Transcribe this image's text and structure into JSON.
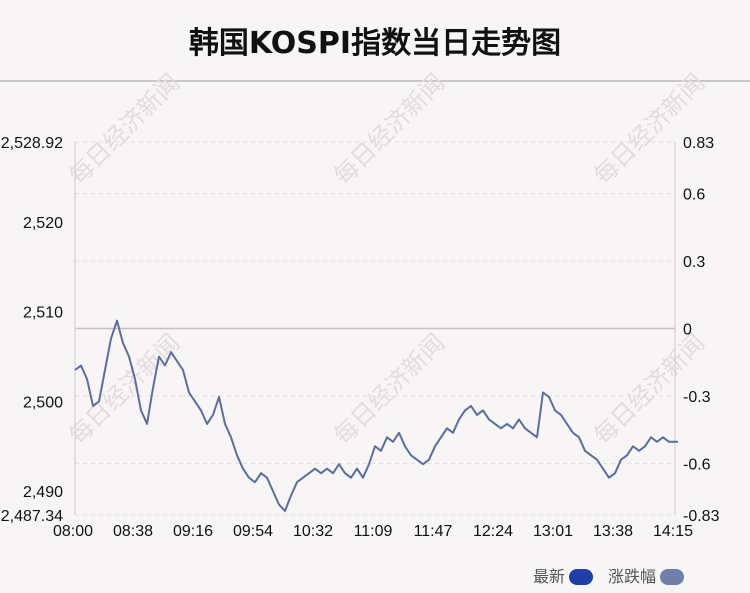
{
  "page": {
    "title": "韩国KOSPI指数当日走势图"
  },
  "legend": {
    "items": [
      {
        "label": "最新",
        "color": "#1f3fa8"
      },
      {
        "label": "涨跌幅",
        "color": "#6e7fa8"
      }
    ]
  },
  "watermark": "每日经济新闻",
  "chart_data": {
    "type": "line",
    "title": "韩国KOSPI指数当日走势图",
    "x_tick_labels": [
      "08:00",
      "08:38",
      "09:16",
      "09:54",
      "10:32",
      "11:09",
      "11:47",
      "12:24",
      "13:01",
      "13:38",
      "14:15"
    ],
    "y_left": {
      "ylim": [
        2487.34,
        2528.92
      ],
      "tick_labels": [
        "2,528.92",
        "2,520",
        "2,510",
        "2,500",
        "2,490",
        "2,487.34"
      ],
      "tick_values": [
        2528.92,
        2520,
        2510,
        2500,
        2490,
        2487.34
      ]
    },
    "y_right": {
      "ylim": [
        -0.83,
        0.83
      ],
      "tick_labels": [
        "0.83",
        "0.6",
        "0.3",
        "0",
        "-0.3",
        "-0.6",
        "-0.83"
      ],
      "tick_values": [
        0.83,
        0.6,
        0.3,
        0,
        -0.3,
        -0.6,
        -0.83
      ]
    },
    "reference_line": {
      "right_value": 0
    },
    "grid": true,
    "series": [
      {
        "color": "#5b6e9c",
        "x_index": [
          0,
          0.1,
          0.2,
          0.3,
          0.4,
          0.5,
          0.6,
          0.7,
          0.8,
          0.9,
          1.0,
          1.1,
          1.2,
          1.3,
          1.4,
          1.5,
          1.6,
          1.7,
          1.8,
          1.9,
          2.0,
          2.1,
          2.2,
          2.3,
          2.4,
          2.5,
          2.6,
          2.7,
          2.8,
          2.9,
          3.0,
          3.1,
          3.2,
          3.3,
          3.4,
          3.5,
          3.6,
          3.7,
          3.8,
          3.9,
          4.0,
          4.1,
          4.2,
          4.3,
          4.4,
          4.5,
          4.6,
          4.7,
          4.8,
          4.9,
          5.0,
          5.1,
          5.2,
          5.3,
          5.4,
          5.5,
          5.6,
          5.7,
          5.8,
          5.9,
          6.0,
          6.1,
          6.2,
          6.3,
          6.4,
          6.5,
          6.6,
          6.7,
          6.8,
          6.9,
          7.0,
          7.1,
          7.2,
          7.3,
          7.4,
          7.5,
          7.6,
          7.7,
          7.8,
          7.9,
          8.0,
          8.1,
          8.2,
          8.3,
          8.4,
          8.5,
          8.6,
          8.7,
          8.8,
          8.9,
          9.0,
          9.1,
          9.2,
          9.3,
          9.4,
          9.5,
          9.6,
          9.7,
          9.8,
          9.9,
          10.0,
          10.05
        ],
        "values": [
          2503.5,
          2504.0,
          2502.5,
          2499.5,
          2500.0,
          2503.5,
          2507.0,
          2509.0,
          2506.5,
          2505.0,
          2502.5,
          2499.0,
          2497.5,
          2501.5,
          2505.0,
          2504.0,
          2505.5,
          2504.5,
          2503.5,
          2501.0,
          2500.0,
          2499.0,
          2497.5,
          2498.5,
          2500.5,
          2497.5,
          2496.0,
          2494.0,
          2492.5,
          2491.5,
          2491.0,
          2492.0,
          2491.5,
          2490.0,
          2488.5,
          2487.8,
          2489.5,
          2491.0,
          2491.5,
          2492.0,
          2492.5,
          2492.0,
          2492.5,
          2492.0,
          2493.0,
          2492.0,
          2491.5,
          2492.5,
          2491.5,
          2493.0,
          2495.0,
          2494.5,
          2496.0,
          2495.5,
          2496.5,
          2495.0,
          2494.0,
          2493.5,
          2493.0,
          2493.5,
          2495.0,
          2496.0,
          2497.0,
          2496.5,
          2498.0,
          2499.0,
          2499.5,
          2498.5,
          2499.0,
          2498.0,
          2497.5,
          2497.0,
          2497.5,
          2497.0,
          2498.0,
          2497.0,
          2496.5,
          2496.0,
          2501.0,
          2500.5,
          2499.0,
          2498.5,
          2497.5,
          2496.5,
          2496.0,
          2494.5,
          2494.0,
          2493.5,
          2492.5,
          2491.5,
          2492.0,
          2493.5,
          2494.0,
          2495.0,
          2494.5,
          2495.0,
          2496.0,
          2495.5,
          2496.0,
          2495.5,
          2495.5,
          2495.5
        ]
      }
    ]
  }
}
